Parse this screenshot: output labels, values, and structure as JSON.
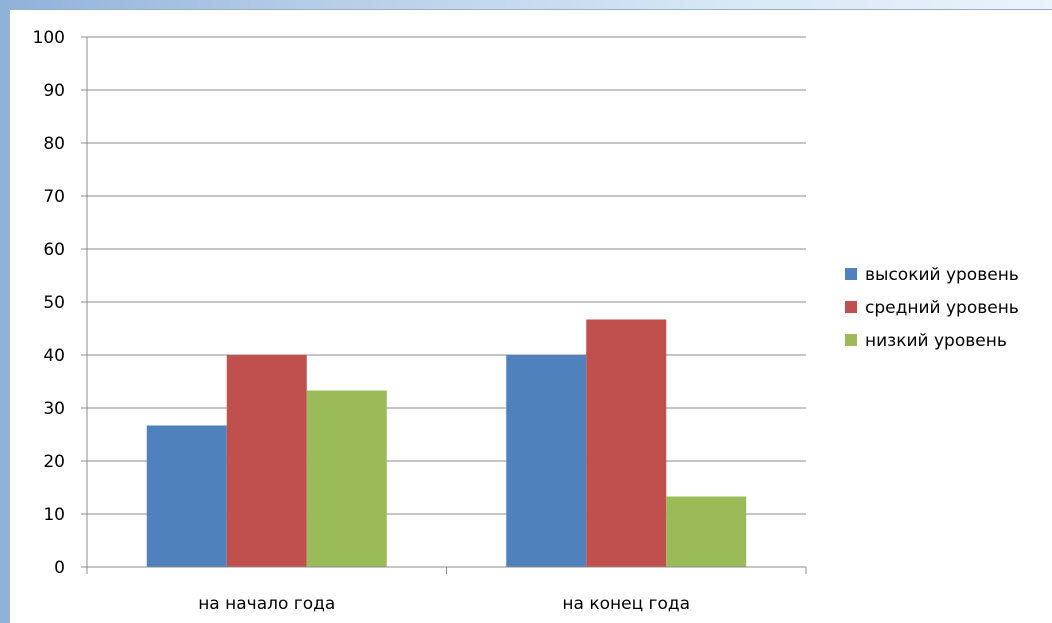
{
  "chart_data": {
    "type": "bar",
    "categories": [
      "на начало года",
      "на конец года"
    ],
    "series": [
      {
        "name": "высокий уровень",
        "color": "#4f81bd",
        "values": [
          26.7,
          40
        ]
      },
      {
        "name": "средний уровень",
        "color": "#c0504d",
        "values": [
          40,
          46.7
        ]
      },
      {
        "name": "низкий уровень",
        "color": "#9bbb59",
        "values": [
          33.3,
          13.3
        ]
      }
    ],
    "yticks": [
      "0",
      "10",
      "20",
      "30",
      "40",
      "50",
      "60",
      "70",
      "80",
      "90",
      "100"
    ],
    "ylim": [
      0,
      100
    ],
    "grid": true,
    "legend_position": "right"
  }
}
